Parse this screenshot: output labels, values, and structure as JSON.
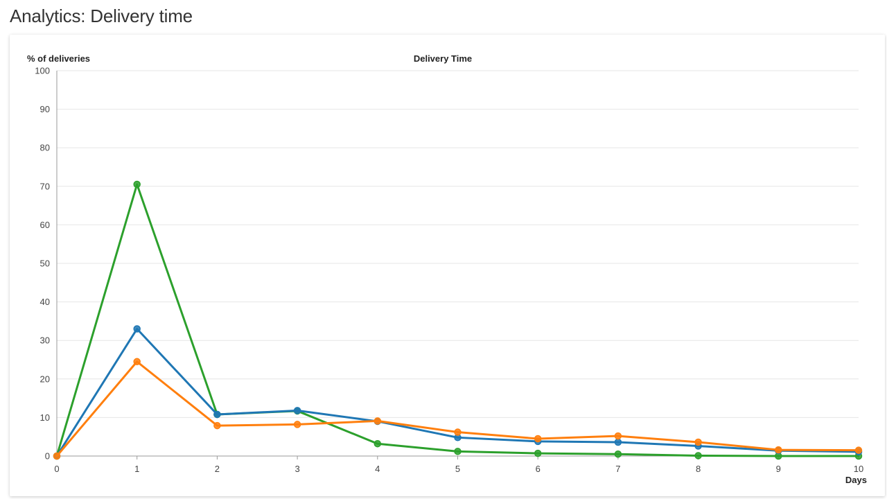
{
  "page": {
    "title": "Analytics: Delivery time"
  },
  "chart_data": {
    "type": "line",
    "title": "Delivery Time",
    "xlabel": "Days",
    "ylabel": "% of deliveries",
    "x": [
      0,
      1,
      2,
      3,
      4,
      5,
      6,
      7,
      8,
      9,
      10
    ],
    "xlim": [
      0,
      10
    ],
    "ylim": [
      0,
      100
    ],
    "yticks": [
      0,
      10,
      20,
      30,
      40,
      50,
      60,
      70,
      80,
      90,
      100
    ],
    "xticks": [
      0,
      1,
      2,
      3,
      4,
      5,
      6,
      7,
      8,
      9,
      10
    ],
    "grid": true,
    "series": [
      {
        "color": "#2ca02c",
        "values": [
          0,
          70.5,
          10.8,
          11.7,
          3.2,
          1.2,
          0.7,
          0.5,
          0.1,
          0.0,
          0.0
        ]
      },
      {
        "color": "#1f77b4",
        "values": [
          0,
          33.0,
          10.8,
          11.8,
          9.0,
          4.8,
          3.8,
          3.6,
          2.6,
          1.4,
          1.1
        ]
      },
      {
        "color": "#ff7f0e",
        "values": [
          0,
          24.5,
          7.9,
          8.2,
          9.1,
          6.2,
          4.5,
          5.2,
          3.6,
          1.6,
          1.5
        ]
      }
    ]
  }
}
